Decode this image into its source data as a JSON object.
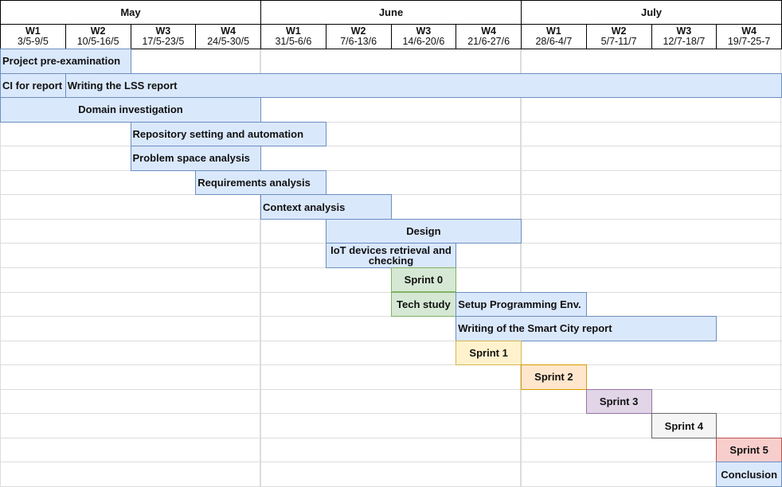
{
  "months": [
    {
      "label": "May",
      "weeks": [
        {
          "w": "W1",
          "dates": "3/5-9/5"
        },
        {
          "w": "W2",
          "dates": "10/5-16/5"
        },
        {
          "w": "W3",
          "dates": "17/5-23/5"
        },
        {
          "w": "W4",
          "dates": "24/5-30/5"
        }
      ]
    },
    {
      "label": "June",
      "weeks": [
        {
          "w": "W1",
          "dates": "31/5-6/6"
        },
        {
          "w": "W2",
          "dates": "7/6-13/6"
        },
        {
          "w": "W3",
          "dates": "14/6-20/6"
        },
        {
          "w": "W4",
          "dates": "21/6-27/6"
        }
      ]
    },
    {
      "label": "July",
      "weeks": [
        {
          "w": "W1",
          "dates": "28/6-4/7"
        },
        {
          "w": "W2",
          "dates": "5/7-11/7"
        },
        {
          "w": "W3",
          "dates": "12/7-18/7"
        },
        {
          "w": "W4",
          "dates": "19/7-25-7"
        }
      ]
    }
  ],
  "palette": {
    "blue": {
      "fill": "#dae8fc",
      "stroke": "#6c8ebf"
    },
    "green": {
      "fill": "#d5e8d4",
      "stroke": "#82b366"
    },
    "yellow": {
      "fill": "#fff2cc",
      "stroke": "#d6b656"
    },
    "orange": {
      "fill": "#ffe6cc",
      "stroke": "#d79b00"
    },
    "purple": {
      "fill": "#e1d5e7",
      "stroke": "#9673a6"
    },
    "grey": {
      "fill": "#f5f5f5",
      "stroke": "#666666"
    },
    "red": {
      "fill": "#f8cecc",
      "stroke": "#b85450"
    }
  },
  "rows": [
    [
      {
        "label": "Project pre-examination",
        "start_week": 1,
        "weeks": 2,
        "color": "blue"
      }
    ],
    [
      {
        "label": "CI for report",
        "start_week": 1,
        "weeks": 1,
        "color": "blue"
      },
      {
        "label": "Writing the LSS report",
        "start_week": 2,
        "weeks": 11,
        "color": "blue"
      }
    ],
    [
      {
        "label": "Domain investigation",
        "start_week": 1,
        "weeks": 4,
        "color": "blue"
      }
    ],
    [
      {
        "label": "Repository setting and automation",
        "start_week": 3,
        "weeks": 3,
        "color": "blue"
      }
    ],
    [
      {
        "label": "Problem space analysis",
        "start_week": 3,
        "weeks": 2,
        "color": "blue"
      }
    ],
    [
      {
        "label": "Requirements analysis",
        "start_week": 4,
        "weeks": 2,
        "color": "blue"
      }
    ],
    [
      {
        "label": "Context analysis",
        "start_week": 5,
        "weeks": 2,
        "color": "blue"
      }
    ],
    [
      {
        "label": "Design",
        "start_week": 6,
        "weeks": 3,
        "color": "blue"
      }
    ],
    [
      {
        "label": "IoT devices retrieval and checking",
        "start_week": 6,
        "weeks": 2,
        "color": "blue"
      }
    ],
    [
      {
        "label": "Sprint 0",
        "start_week": 7,
        "weeks": 1,
        "color": "green"
      }
    ],
    [
      {
        "label": "Tech study",
        "start_week": 7,
        "weeks": 1,
        "color": "green"
      },
      {
        "label": "Setup Programming Env.",
        "start_week": 8,
        "weeks": 2,
        "color": "blue"
      }
    ],
    [
      {
        "label": "Writing of the Smart City report",
        "start_week": 8,
        "weeks": 4,
        "color": "blue"
      }
    ],
    [
      {
        "label": "Sprint 1",
        "start_week": 8,
        "weeks": 1,
        "color": "yellow"
      }
    ],
    [
      {
        "label": "Sprint 2",
        "start_week": 9,
        "weeks": 1,
        "color": "orange"
      }
    ],
    [
      {
        "label": "Sprint 3",
        "start_week": 10,
        "weeks": 1,
        "color": "purple"
      }
    ],
    [
      {
        "label": "Sprint 4",
        "start_week": 11,
        "weeks": 1,
        "color": "grey"
      }
    ],
    [
      {
        "label": "Sprint 5",
        "start_week": 12,
        "weeks": 1,
        "color": "red"
      }
    ],
    [
      {
        "label": "Conclusion",
        "start_week": 12,
        "weeks": 1,
        "color": "blue"
      }
    ]
  ]
}
